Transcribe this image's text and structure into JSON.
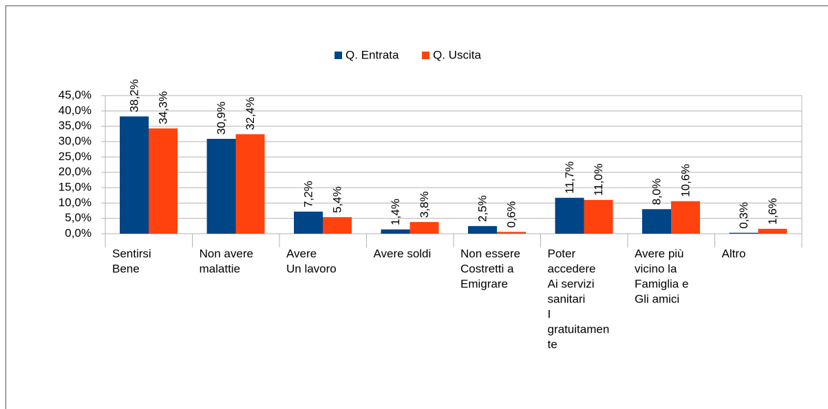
{
  "chart_data": {
    "type": "bar",
    "categories": [
      [
        "Sentirsi",
        "Bene"
      ],
      [
        "Non avere",
        "malattie"
      ],
      [
        "Avere",
        "Un lavoro"
      ],
      [
        "Avere soldi"
      ],
      [
        "Non essere",
        "Costretti a",
        "Emigrare"
      ],
      [
        "Poter",
        "accedere",
        "Ai servizi",
        "sanitari",
        "I",
        "gratuitamen",
        "te"
      ],
      [
        "Avere più",
        "vicino la",
        "Famiglia e",
        "Gli amici"
      ],
      [
        "Altro"
      ]
    ],
    "series": [
      {
        "name": "Q. Entrata",
        "color": "#004586",
        "values": [
          38.2,
          30.9,
          7.2,
          1.4,
          2.5,
          11.7,
          8.0,
          0.3
        ],
        "value_labels": [
          "38,2%",
          "30,9%",
          "7,2%",
          "1,4%",
          "2,5%",
          "11,7%",
          "8,0%",
          "0,3%"
        ]
      },
      {
        "name": "Q. Uscita",
        "color": "#ff420e",
        "values": [
          34.3,
          32.4,
          5.4,
          3.8,
          0.6,
          11.0,
          10.6,
          1.6
        ],
        "value_labels": [
          "34,3%",
          "32,4%",
          "5,4%",
          "3,8%",
          "0,6%",
          "11,0%",
          "10,6%",
          "1,6%"
        ]
      }
    ],
    "ylim": [
      0,
      45
    ],
    "yticks": [
      {
        "value": 0,
        "label": "0,0%"
      },
      {
        "value": 5,
        "label": "5,0%"
      },
      {
        "value": 10,
        "label": "10,0%"
      },
      {
        "value": 15,
        "label": "15,0%"
      },
      {
        "value": 20,
        "label": "20,0%"
      },
      {
        "value": 25,
        "label": "25,0%"
      },
      {
        "value": 30,
        "label": "30,0%"
      },
      {
        "value": 35,
        "label": "35,0%"
      },
      {
        "value": 40,
        "label": "40,0%"
      },
      {
        "value": 45,
        "label": "45,0%"
      }
    ],
    "grid": true,
    "legend": "top"
  }
}
